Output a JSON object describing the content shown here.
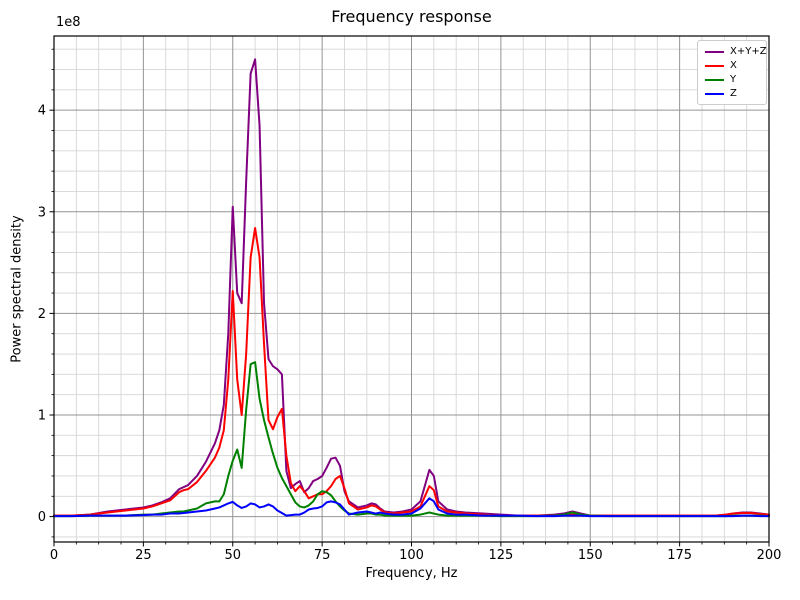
{
  "figure": {
    "title": "Frequency response",
    "xlabel": "Frequency, Hz",
    "ylabel": "Power spectral density",
    "offset_text": "1e8",
    "background_color": "#ffffff",
    "spine_color": "#000000",
    "grid_major_color": "#949494",
    "grid_minor_color": "#d6d6d6"
  },
  "legend": {
    "position": "upper right",
    "entries": [
      {
        "label": "X+Y+Z",
        "color": "#800080"
      },
      {
        "label": "X",
        "color": "#ff0000"
      },
      {
        "label": "Y",
        "color": "#008000"
      },
      {
        "label": "Z",
        "color": "#0000ff"
      }
    ]
  },
  "chart_data": {
    "type": "line",
    "title": "Frequency response",
    "xlabel": "Frequency, Hz",
    "ylabel": "Power spectral density",
    "y_unit": "1e8",
    "xlim": [
      0,
      200
    ],
    "ylim_1e8": [
      -0.25,
      4.73
    ],
    "xticks": [
      0,
      25,
      50,
      75,
      100,
      125,
      150,
      175,
      200
    ],
    "yticks_1e8": [
      0,
      1,
      2,
      3,
      4
    ],
    "xminor_step": 6.25,
    "yminor_step_1e8": 0.2,
    "grid": "both",
    "legend_position": "upper right",
    "x": [
      0,
      5,
      10,
      15,
      20,
      25,
      27.5,
      30,
      32.5,
      35,
      36.25,
      37.5,
      40,
      42.5,
      45,
      46.25,
      47.5,
      48.75,
      50,
      51.25,
      52.5,
      53.75,
      55,
      56.25,
      57.5,
      58.75,
      60,
      61.25,
      62.5,
      63.75,
      65,
      66.25,
      67.5,
      68.75,
      70,
      71.25,
      72.5,
      73.75,
      75,
      76.25,
      77.5,
      78.75,
      80,
      81.25,
      82.5,
      85,
      87.5,
      88.75,
      90,
      91.25,
      92.5,
      95,
      97.5,
      100,
      102.5,
      105,
      106.25,
      107.5,
      110,
      112.5,
      115,
      120,
      125,
      130,
      135,
      140,
      142.5,
      145,
      147.5,
      150,
      155,
      160,
      165,
      170,
      175,
      180,
      185,
      188,
      190,
      192.5,
      195,
      197.5,
      200
    ],
    "series": [
      {
        "name": "X+Y+Z",
        "color": "#800080",
        "values_1e8": [
          0.01,
          0.01,
          0.02,
          0.05,
          0.07,
          0.09,
          0.11,
          0.14,
          0.18,
          0.27,
          0.29,
          0.31,
          0.4,
          0.54,
          0.72,
          0.85,
          1.1,
          1.8,
          3.05,
          2.2,
          2.1,
          3.3,
          4.36,
          4.5,
          3.85,
          2.1,
          1.55,
          1.48,
          1.45,
          1.4,
          0.45,
          0.28,
          0.32,
          0.35,
          0.24,
          0.28,
          0.35,
          0.37,
          0.4,
          0.48,
          0.57,
          0.58,
          0.5,
          0.25,
          0.15,
          0.09,
          0.11,
          0.13,
          0.12,
          0.08,
          0.05,
          0.04,
          0.05,
          0.07,
          0.15,
          0.46,
          0.4,
          0.15,
          0.07,
          0.05,
          0.04,
          0.03,
          0.02,
          0.01,
          0.01,
          0.02,
          0.03,
          0.05,
          0.03,
          0.01,
          0.01,
          0.01,
          0.01,
          0.01,
          0.01,
          0.01,
          0.01,
          0.02,
          0.03,
          0.04,
          0.04,
          0.03,
          0.02
        ]
      },
      {
        "name": "X",
        "color": "#ff0000",
        "values_1e8": [
          0.01,
          0.01,
          0.02,
          0.04,
          0.06,
          0.08,
          0.1,
          0.13,
          0.16,
          0.24,
          0.26,
          0.27,
          0.34,
          0.45,
          0.58,
          0.68,
          0.85,
          1.35,
          2.22,
          1.35,
          1.0,
          1.6,
          2.55,
          2.84,
          2.55,
          1.7,
          0.95,
          0.86,
          0.98,
          1.06,
          0.6,
          0.33,
          0.25,
          0.3,
          0.25,
          0.18,
          0.2,
          0.22,
          0.22,
          0.25,
          0.3,
          0.37,
          0.4,
          0.28,
          0.13,
          0.07,
          0.09,
          0.11,
          0.1,
          0.07,
          0.04,
          0.03,
          0.04,
          0.05,
          0.1,
          0.3,
          0.26,
          0.1,
          0.05,
          0.04,
          0.03,
          0.02,
          0.01,
          0.01,
          0.01,
          0.01,
          0.015,
          0.02,
          0.015,
          0.01,
          0.01,
          0.01,
          0.01,
          0.01,
          0.01,
          0.01,
          0.01,
          0.02,
          0.03,
          0.035,
          0.035,
          0.025,
          0.02
        ]
      },
      {
        "name": "Y",
        "color": "#008000",
        "values_1e8": [
          0.005,
          0.005,
          0.01,
          0.01,
          0.01,
          0.02,
          0.02,
          0.03,
          0.04,
          0.05,
          0.05,
          0.06,
          0.08,
          0.13,
          0.15,
          0.15,
          0.22,
          0.4,
          0.55,
          0.66,
          0.48,
          1.05,
          1.5,
          1.52,
          1.16,
          0.95,
          0.78,
          0.62,
          0.48,
          0.38,
          0.3,
          0.22,
          0.14,
          0.1,
          0.09,
          0.11,
          0.15,
          0.22,
          0.25,
          0.24,
          0.21,
          0.15,
          0.1,
          0.06,
          0.03,
          0.02,
          0.03,
          0.03,
          0.02,
          0.02,
          0.01,
          0.01,
          0.01,
          0.01,
          0.02,
          0.04,
          0.03,
          0.02,
          0.01,
          0.01,
          0.01,
          0.01,
          0.005,
          0.005,
          0.005,
          0.01,
          0.02,
          0.04,
          0.02,
          0.01,
          0.005,
          0.005,
          0.005,
          0.005,
          0.005,
          0.005,
          0.005,
          0.005,
          0.01,
          0.01,
          0.01,
          0.01,
          0.005
        ]
      },
      {
        "name": "Z",
        "color": "#0000ff",
        "values_1e8": [
          0.005,
          0.005,
          0.01,
          0.01,
          0.01,
          0.015,
          0.02,
          0.02,
          0.03,
          0.03,
          0.035,
          0.04,
          0.05,
          0.06,
          0.08,
          0.09,
          0.11,
          0.13,
          0.145,
          0.11,
          0.085,
          0.1,
          0.13,
          0.12,
          0.09,
          0.1,
          0.12,
          0.1,
          0.06,
          0.035,
          0.01,
          0.015,
          0.02,
          0.02,
          0.04,
          0.07,
          0.08,
          0.085,
          0.1,
          0.14,
          0.15,
          0.14,
          0.12,
          0.07,
          0.02,
          0.04,
          0.05,
          0.04,
          0.03,
          0.04,
          0.03,
          0.02,
          0.02,
          0.03,
          0.08,
          0.18,
          0.15,
          0.07,
          0.03,
          0.02,
          0.02,
          0.01,
          0.01,
          0.01,
          0.005,
          0.005,
          0.01,
          0.01,
          0.01,
          0.005,
          0.005,
          0.005,
          0.005,
          0.005,
          0.005,
          0.005,
          0.005,
          0.005,
          0.005,
          0.01,
          0.01,
          0.005,
          0.005
        ]
      }
    ]
  }
}
